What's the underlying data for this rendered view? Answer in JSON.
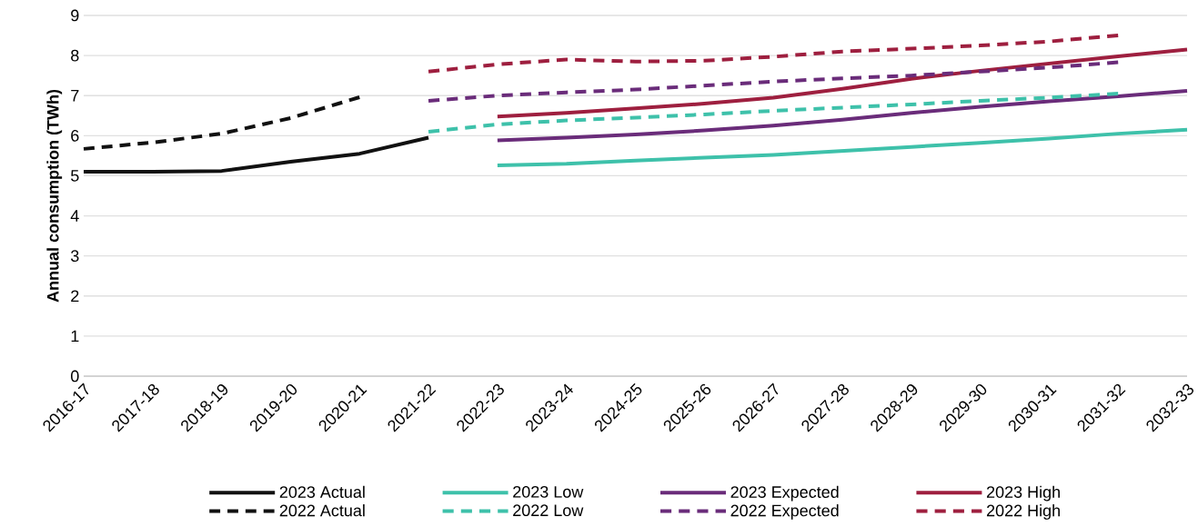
{
  "chart_data": {
    "type": "line",
    "ylabel": "Annual consumption (TWh)",
    "categories": [
      "2016-17",
      "2017-18",
      "2018-19",
      "2019-20",
      "2020-21",
      "2021-22",
      "2022-23",
      "2023-24",
      "2024-25",
      "2025-26",
      "2026-27",
      "2027-28",
      "2028-29",
      "2029-30",
      "2030-31",
      "2031-32",
      "2032-33"
    ],
    "ylim": [
      0,
      9
    ],
    "yticks": [
      0,
      1,
      2,
      3,
      4,
      5,
      6,
      7,
      8,
      9
    ],
    "grid": "y",
    "legend": "bottom",
    "series": [
      {
        "name": "2023 Actual",
        "color": "#111111",
        "line_style": "solid",
        "values": [
          5.1,
          5.1,
          5.12,
          5.35,
          5.55,
          5.95,
          null,
          null,
          null,
          null,
          null,
          null,
          null,
          null,
          null,
          null,
          null
        ]
      },
      {
        "name": "2023 Low",
        "color": "#3ec1aa",
        "line_style": "solid",
        "values": [
          null,
          null,
          null,
          null,
          null,
          null,
          5.26,
          5.3,
          5.38,
          5.45,
          5.52,
          5.62,
          5.72,
          5.82,
          5.93,
          6.05,
          6.15
        ]
      },
      {
        "name": "2023 Expected",
        "color": "#6a2c7a",
        "line_style": "solid",
        "values": [
          null,
          null,
          null,
          null,
          null,
          null,
          5.88,
          5.95,
          6.03,
          6.13,
          6.25,
          6.4,
          6.57,
          6.72,
          6.86,
          6.98,
          7.12
        ]
      },
      {
        "name": "2023 High",
        "color": "#9e1f3f",
        "line_style": "solid",
        "values": [
          null,
          null,
          null,
          null,
          null,
          null,
          6.48,
          6.57,
          6.68,
          6.8,
          6.95,
          7.17,
          7.42,
          7.62,
          7.8,
          7.98,
          8.15
        ]
      },
      {
        "name": "2022 Actual",
        "color": "#111111",
        "line_style": "dashed",
        "values": [
          5.67,
          5.83,
          6.05,
          6.44,
          6.96,
          null,
          null,
          null,
          null,
          null,
          null,
          null,
          null,
          null,
          null,
          null,
          null
        ]
      },
      {
        "name": "2022 Low",
        "color": "#3ec1aa",
        "line_style": "dashed",
        "values": [
          null,
          null,
          null,
          null,
          null,
          6.1,
          6.28,
          6.38,
          6.45,
          6.53,
          6.62,
          6.7,
          6.78,
          6.87,
          6.95,
          7.05,
          null
        ]
      },
      {
        "name": "2022 Expected",
        "color": "#6a2c7a",
        "line_style": "dashed",
        "values": [
          null,
          null,
          null,
          null,
          null,
          6.87,
          7.0,
          7.08,
          7.15,
          7.25,
          7.35,
          7.43,
          7.5,
          7.6,
          7.7,
          7.83,
          null
        ]
      },
      {
        "name": "2022 High",
        "color": "#9e1f3f",
        "line_style": "dashed",
        "values": [
          null,
          null,
          null,
          null,
          null,
          7.6,
          7.78,
          7.9,
          7.85,
          7.87,
          7.97,
          8.1,
          8.17,
          8.25,
          8.35,
          8.5,
          null
        ]
      }
    ]
  }
}
